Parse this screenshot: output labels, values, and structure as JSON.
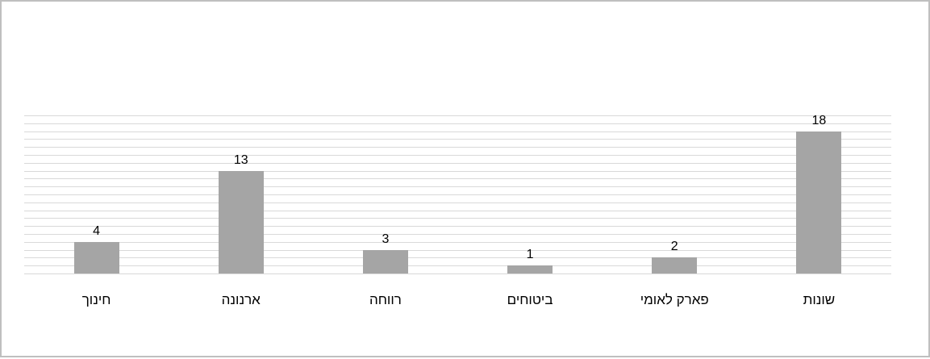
{
  "chart_data": {
    "type": "bar",
    "categories": [
      "חינוך",
      "ארנונה",
      "רווחה",
      "ביטוחים",
      "פארק לאומי",
      "שונות"
    ],
    "values": [
      4,
      13,
      3,
      1,
      2,
      18
    ],
    "title": "",
    "xlabel": "",
    "ylabel": "",
    "ylim": [
      0,
      20
    ],
    "grid": true,
    "legend": "none",
    "data_labels": true,
    "colors": {
      "bar": "#a5a5a5",
      "grid": "#d9d9d9",
      "border": "#bfbfbf",
      "text": "#000000"
    }
  }
}
